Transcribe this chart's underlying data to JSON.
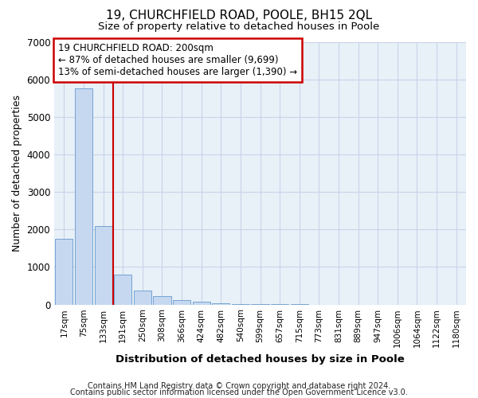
{
  "title1": "19, CHURCHFIELD ROAD, POOLE, BH15 2QL",
  "title2": "Size of property relative to detached houses in Poole",
  "xlabel": "Distribution of detached houses by size in Poole",
  "ylabel": "Number of detached properties",
  "bar_labels": [
    "17sqm",
    "75sqm",
    "133sqm",
    "191sqm",
    "250sqm",
    "308sqm",
    "366sqm",
    "424sqm",
    "482sqm",
    "540sqm",
    "599sqm",
    "657sqm",
    "715sqm",
    "773sqm",
    "831sqm",
    "889sqm",
    "947sqm",
    "1006sqm",
    "1064sqm",
    "1122sqm",
    "1180sqm"
  ],
  "bar_values": [
    1760,
    5750,
    2080,
    800,
    370,
    220,
    115,
    65,
    35,
    20,
    10,
    5,
    2,
    0,
    0,
    0,
    0,
    0,
    0,
    0,
    0
  ],
  "bar_color": "#c5d8f0",
  "bar_edge_color": "#6699cc",
  "vline_x": 2.5,
  "annotation_text_line1": "19 CHURCHFIELD ROAD: 200sqm",
  "annotation_text_line2": "← 87% of detached houses are smaller (9,699)",
  "annotation_text_line3": "13% of semi-detached houses are larger (1,390) →",
  "vline_color": "#cc0000",
  "annotation_box_edge": "#cc0000",
  "ylim": [
    0,
    7000
  ],
  "yticks": [
    0,
    1000,
    2000,
    3000,
    4000,
    5000,
    6000,
    7000
  ],
  "footer1": "Contains HM Land Registry data © Crown copyright and database right 2024.",
  "footer2": "Contains public sector information licensed under the Open Government Licence v3.0.",
  "background_color": "#e8f0f8",
  "grid_color": "#c8d4e8"
}
